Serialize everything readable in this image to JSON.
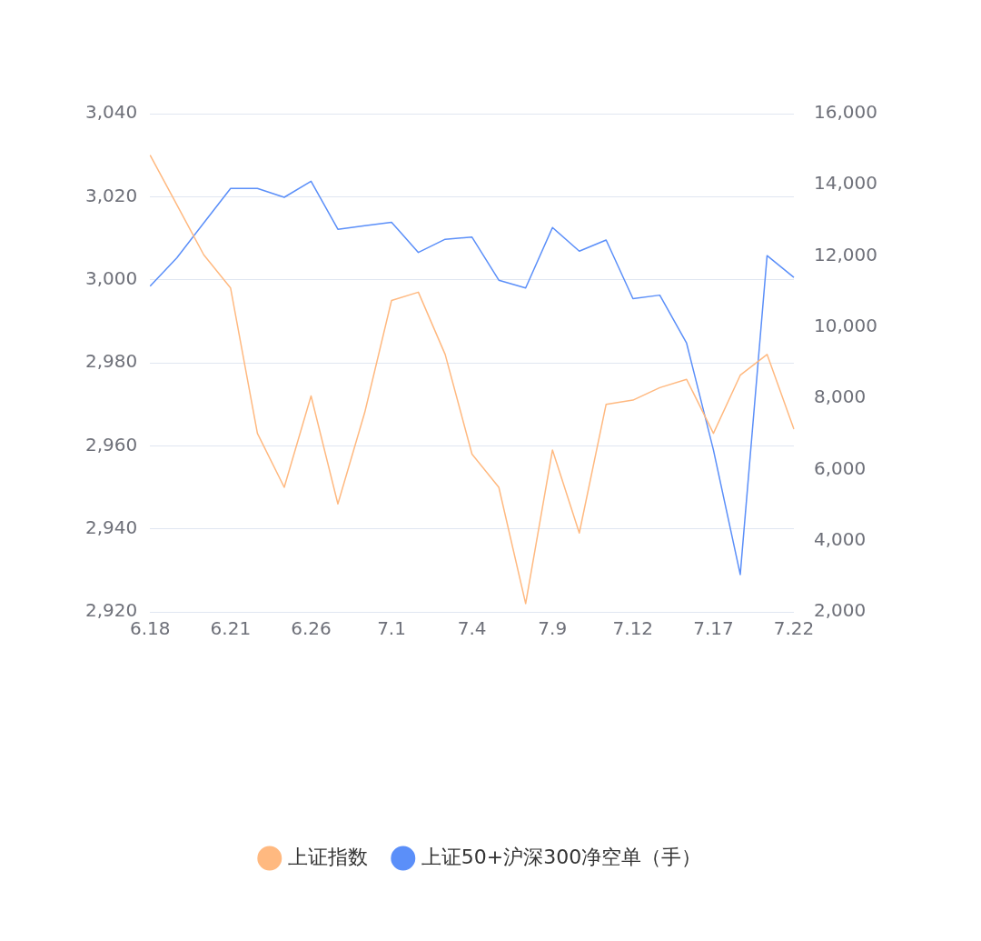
{
  "chart_data": {
    "type": "line",
    "categories": [
      "6.18",
      null,
      null,
      "6.21",
      null,
      null,
      "6.26",
      null,
      null,
      "7.1",
      null,
      null,
      "7.4",
      null,
      null,
      "7.9",
      null,
      null,
      "7.12",
      null,
      null,
      "7.17",
      null,
      null,
      "7.22"
    ],
    "series": [
      {
        "name": "上证指数",
        "color": "#ffb980",
        "values": [
          3030,
          3018,
          3006,
          2998,
          2963,
          2950,
          2972,
          2946,
          2968,
          2995,
          2997,
          2982,
          2958,
          2950,
          2922,
          2959,
          2939,
          2970,
          2971,
          2974,
          2976,
          2963,
          2977,
          2982,
          2964
        ]
      },
      {
        "name": "上证50+沪深300净空单（手）",
        "color": "#5b8ff9",
        "axis": "y2",
        "values": [
          11150,
          11950,
          12930,
          13900,
          13900,
          13650,
          14100,
          12750,
          12850,
          12950,
          12100,
          12470,
          12530,
          11320,
          11100,
          12800,
          12135,
          12450,
          10800,
          10900,
          9550,
          6550,
          3050,
          12010,
          11400
        ]
      }
    ],
    "ylim": [
      2920,
      3040
    ],
    "yticks": [
      {
        "value": 2920,
        "label": "2,920"
      },
      {
        "value": 2940,
        "label": "2,940"
      },
      {
        "value": 2960,
        "label": "2,960"
      },
      {
        "value": 2980,
        "label": "2,980"
      },
      {
        "value": 3000,
        "label": "3,000"
      },
      {
        "value": 3020,
        "label": "3,020"
      },
      {
        "value": 3040,
        "label": "3,040"
      }
    ],
    "y2lim": [
      2000,
      16000
    ],
    "y2ticks": [
      {
        "value": 2000,
        "label": "2,000"
      },
      {
        "value": 4000,
        "label": "4,000"
      },
      {
        "value": 6000,
        "label": "6,000"
      },
      {
        "value": 8000,
        "label": "8,000"
      },
      {
        "value": 10000,
        "label": "10,000"
      },
      {
        "value": 12000,
        "label": "12,000"
      },
      {
        "value": 14000,
        "label": "14,000"
      },
      {
        "value": 16000,
        "label": "16,000"
      }
    ],
    "grid": "y",
    "legend": "bottom",
    "marker": "none",
    "line_style": "solid"
  }
}
